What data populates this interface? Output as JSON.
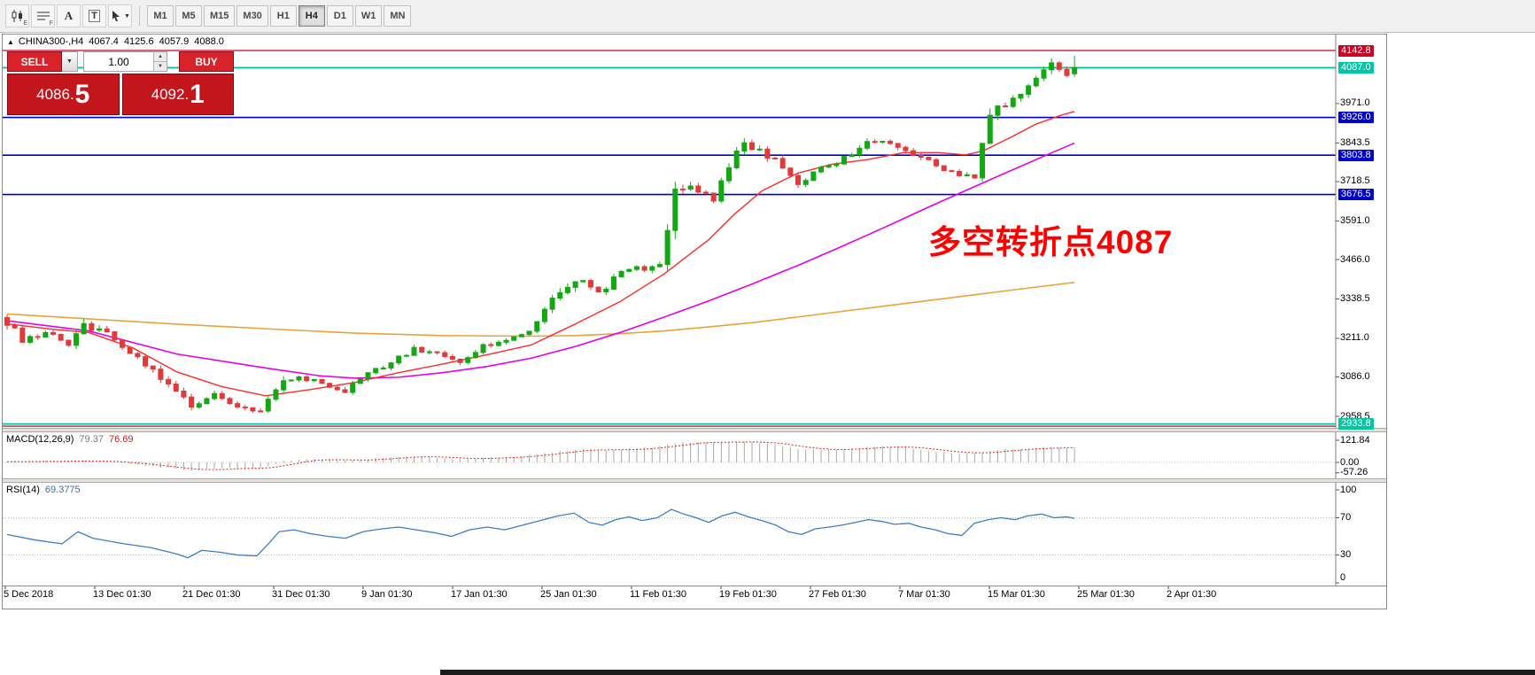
{
  "toolbar": {
    "icon_sub_e": "E",
    "icon_sub_f": "F",
    "icon_a": "A",
    "icon_t": "T",
    "timeframes": [
      "M1",
      "M5",
      "M15",
      "M30",
      "H1",
      "H4",
      "D1",
      "W1",
      "MN"
    ],
    "active_timeframe": "H4"
  },
  "icons": {
    "collapse": "▲",
    "dropdown": "▼",
    "step_up": "▲",
    "step_down": "▼",
    "cursor": "➤"
  },
  "chart": {
    "title_symbol": "CHINA300-,H4",
    "ohlc": {
      "open": "4067.4",
      "high": "4125.6",
      "low": "4057.9",
      "close": "4088.0"
    },
    "annotation": {
      "text": "多空转折点4087",
      "color": "#fe0000"
    }
  },
  "trade_panel": {
    "sell_label": "SELL",
    "buy_label": "BUY",
    "volume": "1.00",
    "sell_price_small": "4086.",
    "sell_price_big": "5",
    "buy_price_small": "4092.",
    "buy_price_big": "1"
  },
  "indicators": {
    "macd": {
      "name": "MACD(12,26,9)",
      "value_main": "79.37",
      "value_signal": "76.69"
    },
    "rsi": {
      "name": "RSI(14)",
      "value": "69.3775"
    }
  },
  "chart_data": {
    "type": "candlestick",
    "symbol": "CHINA300-",
    "timeframe": "H4",
    "bars": 140,
    "ylim": [
      2927,
      4160
    ],
    "last_candle": {
      "open": 4067.4,
      "high": 4125.6,
      "low": 4057.9,
      "close": 4088.0
    },
    "price_axis_plain": [
      3971.0,
      3843.5,
      3718.5,
      3591.0,
      3466.0,
      3338.5,
      3211.0,
      3086.0,
      2958.5
    ],
    "levels": [
      {
        "price": 4142.8,
        "color": "#cc0022",
        "badge": "red",
        "label": "4142.8"
      },
      {
        "price": 4087.0,
        "color": "#00c7a3",
        "badge": "teal",
        "label": "4087.0"
      },
      {
        "price": 3926.0,
        "color": "#0000cc",
        "badge": "blue",
        "label": "3926.0"
      },
      {
        "price": 3803.8,
        "color": "#0000cc",
        "badge": "blue",
        "label": "3803.8"
      },
      {
        "price": 3676.5,
        "color": "#0000cc",
        "badge": "blue",
        "label": "3676.5"
      },
      {
        "price": 2933.8,
        "color": "#00c7a3",
        "badge": "teal",
        "label": "2933.8"
      },
      {
        "price": 2926.5,
        "color": "#cc0022",
        "badge": null,
        "label": null
      }
    ],
    "time_labels": [
      "5 Dec 2018",
      "13 Dec 01:30",
      "21 Dec 01:30",
      "31 Dec 01:30",
      "9 Jan 01:30",
      "17 Jan 01:30",
      "25 Jan 01:30",
      "11 Feb 01:30",
      "19 Feb 01:30",
      "27 Feb 01:30",
      "7 Mar 01:30",
      "15 Mar 01:30",
      "25 Mar 01:30",
      "2 Apr 01:30"
    ],
    "colors": {
      "bull": "#13a813",
      "bear": "#e23a3a",
      "ma_fast": "#ff2a2a",
      "ma_mid": "#e800e8",
      "ma_slow": "#e8a33d",
      "rsi": "#3f7cc4",
      "macd_hist": "#a9a9a9",
      "macd_signal": "#dd2222"
    },
    "candles_waypoints": [
      [
        0,
        3265,
        45
      ],
      [
        2,
        3205,
        26
      ],
      [
        5,
        3228,
        18
      ],
      [
        8,
        3196,
        18
      ],
      [
        10,
        3252,
        30
      ],
      [
        13,
        3226,
        20
      ],
      [
        16,
        3162,
        20
      ],
      [
        19,
        3112,
        22
      ],
      [
        22,
        3032,
        26
      ],
      [
        24,
        2996,
        22
      ],
      [
        27,
        3030,
        18
      ],
      [
        30,
        2996,
        18
      ],
      [
        33,
        2976,
        18
      ],
      [
        35,
        3058,
        32
      ],
      [
        38,
        3092,
        20
      ],
      [
        41,
        3062,
        16
      ],
      [
        44,
        3042,
        16
      ],
      [
        47,
        3096,
        18
      ],
      [
        50,
        3136,
        18
      ],
      [
        53,
        3176,
        18
      ],
      [
        56,
        3160,
        15
      ],
      [
        59,
        3130,
        15
      ],
      [
        62,
        3190,
        18
      ],
      [
        65,
        3202,
        15
      ],
      [
        68,
        3242,
        22
      ],
      [
        71,
        3330,
        28
      ],
      [
        74,
        3406,
        28
      ],
      [
        77,
        3352,
        22
      ],
      [
        80,
        3430,
        26
      ],
      [
        83,
        3436,
        18
      ],
      [
        85,
        3452,
        20
      ],
      [
        87,
        3700,
        58
      ],
      [
        89,
        3702,
        26
      ],
      [
        92,
        3656,
        22
      ],
      [
        95,
        3830,
        42
      ],
      [
        97,
        3832,
        24
      ],
      [
        100,
        3790,
        22
      ],
      [
        103,
        3716,
        20
      ],
      [
        106,
        3760,
        20
      ],
      [
        109,
        3792,
        18
      ],
      [
        112,
        3846,
        22
      ],
      [
        114,
        3852,
        20
      ],
      [
        117,
        3822,
        18
      ],
      [
        120,
        3786,
        18
      ],
      [
        123,
        3746,
        18
      ],
      [
        126,
        3732,
        15
      ],
      [
        128,
        3936,
        42
      ],
      [
        130,
        3966,
        22
      ],
      [
        133,
        4020,
        26
      ],
      [
        136,
        4106,
        30
      ],
      [
        138,
        4068,
        24
      ],
      [
        139,
        4088,
        30
      ]
    ],
    "ma_fast_points": [
      [
        8,
        3258
      ],
      [
        60,
        3240
      ],
      [
        100,
        3230
      ],
      [
        150,
        3180
      ],
      [
        200,
        3102
      ],
      [
        250,
        3055
      ],
      [
        300,
        3025
      ],
      [
        350,
        3045
      ],
      [
        400,
        3068
      ],
      [
        450,
        3100
      ],
      [
        500,
        3128
      ],
      [
        550,
        3158
      ],
      [
        600,
        3190
      ],
      [
        650,
        3258
      ],
      [
        700,
        3330
      ],
      [
        750,
        3420
      ],
      [
        800,
        3530
      ],
      [
        830,
        3615
      ],
      [
        860,
        3688
      ],
      [
        900,
        3745
      ],
      [
        940,
        3775
      ],
      [
        980,
        3790
      ],
      [
        1020,
        3812
      ],
      [
        1060,
        3812
      ],
      [
        1090,
        3805
      ],
      [
        1110,
        3818
      ],
      [
        1140,
        3860
      ],
      [
        1170,
        3905
      ],
      [
        1200,
        3935
      ],
      [
        1213,
        3945
      ]
    ],
    "ma_mid_points": [
      [
        8,
        3268
      ],
      [
        100,
        3235
      ],
      [
        200,
        3160
      ],
      [
        300,
        3115
      ],
      [
        360,
        3090
      ],
      [
        400,
        3082
      ],
      [
        450,
        3085
      ],
      [
        500,
        3100
      ],
      [
        550,
        3120
      ],
      [
        600,
        3147
      ],
      [
        650,
        3185
      ],
      [
        700,
        3230
      ],
      [
        750,
        3280
      ],
      [
        800,
        3332
      ],
      [
        850,
        3388
      ],
      [
        900,
        3446
      ],
      [
        950,
        3508
      ],
      [
        1000,
        3572
      ],
      [
        1050,
        3638
      ],
      [
        1100,
        3702
      ],
      [
        1150,
        3765
      ],
      [
        1190,
        3815
      ],
      [
        1213,
        3843
      ]
    ],
    "ma_slow_points": [
      [
        8,
        3290
      ],
      [
        100,
        3274
      ],
      [
        200,
        3257
      ],
      [
        300,
        3242
      ],
      [
        400,
        3228
      ],
      [
        500,
        3220
      ],
      [
        600,
        3218
      ],
      [
        650,
        3220
      ],
      [
        700,
        3226
      ],
      [
        750,
        3235
      ],
      [
        800,
        3248
      ],
      [
        850,
        3262
      ],
      [
        900,
        3280
      ],
      [
        950,
        3298
      ],
      [
        1000,
        3316
      ],
      [
        1050,
        3334
      ],
      [
        1100,
        3352
      ],
      [
        1150,
        3370
      ],
      [
        1213,
        3392
      ]
    ],
    "macd": {
      "params": "12,26,9",
      "main": 79.37,
      "signal": 76.69,
      "axis": [
        121.84,
        0.0,
        -57.26
      ],
      "hist_waypoints": [
        [
          0,
          3
        ],
        [
          5,
          7
        ],
        [
          10,
          8
        ],
        [
          14,
          0
        ],
        [
          18,
          -20
        ],
        [
          22,
          -38
        ],
        [
          24,
          -45
        ],
        [
          28,
          -30
        ],
        [
          31,
          -34
        ],
        [
          34,
          -24
        ],
        [
          36,
          6
        ],
        [
          39,
          20
        ],
        [
          42,
          14
        ],
        [
          45,
          10
        ],
        [
          48,
          22
        ],
        [
          51,
          30
        ],
        [
          54,
          34
        ],
        [
          57,
          24
        ],
        [
          60,
          18
        ],
        [
          63,
          28
        ],
        [
          66,
          32
        ],
        [
          69,
          44
        ],
        [
          72,
          62
        ],
        [
          75,
          74
        ],
        [
          78,
          64
        ],
        [
          81,
          76
        ],
        [
          84,
          82
        ],
        [
          87,
          106
        ],
        [
          90,
          112
        ],
        [
          93,
          108
        ],
        [
          95,
          118
        ],
        [
          97,
          114
        ],
        [
          100,
          96
        ],
        [
          103,
          76
        ],
        [
          106,
          68
        ],
        [
          109,
          72
        ],
        [
          112,
          86
        ],
        [
          115,
          88
        ],
        [
          118,
          74
        ],
        [
          121,
          60
        ],
        [
          124,
          48
        ],
        [
          127,
          55
        ],
        [
          130,
          72
        ],
        [
          133,
          75
        ],
        [
          136,
          82
        ],
        [
          139,
          79.4
        ]
      ]
    },
    "rsi": {
      "period": 14,
      "value": 69.3775,
      "axis": [
        100,
        70,
        30,
        0
      ],
      "points": [
        [
          8,
          52
        ],
        [
          40,
          46
        ],
        [
          70,
          42
        ],
        [
          88,
          55
        ],
        [
          105,
          48
        ],
        [
          140,
          42
        ],
        [
          170,
          38
        ],
        [
          200,
          31
        ],
        [
          212,
          27
        ],
        [
          228,
          35
        ],
        [
          248,
          33
        ],
        [
          268,
          30
        ],
        [
          290,
          29
        ],
        [
          305,
          44
        ],
        [
          315,
          55
        ],
        [
          332,
          57
        ],
        [
          350,
          53
        ],
        [
          370,
          50
        ],
        [
          390,
          48
        ],
        [
          410,
          55
        ],
        [
          430,
          58
        ],
        [
          450,
          60
        ],
        [
          470,
          57
        ],
        [
          490,
          54
        ],
        [
          510,
          50
        ],
        [
          530,
          57
        ],
        [
          550,
          60
        ],
        [
          570,
          57
        ],
        [
          590,
          62
        ],
        [
          610,
          67
        ],
        [
          630,
          72
        ],
        [
          648,
          75
        ],
        [
          665,
          65
        ],
        [
          680,
          62
        ],
        [
          695,
          68
        ],
        [
          710,
          71
        ],
        [
          725,
          67
        ],
        [
          742,
          70
        ],
        [
          758,
          79
        ],
        [
          772,
          74
        ],
        [
          786,
          70
        ],
        [
          800,
          65
        ],
        [
          815,
          72
        ],
        [
          830,
          76
        ],
        [
          845,
          71
        ],
        [
          860,
          67
        ],
        [
          876,
          62
        ],
        [
          890,
          55
        ],
        [
          905,
          52
        ],
        [
          920,
          58
        ],
        [
          936,
          60
        ],
        [
          950,
          62
        ],
        [
          966,
          65
        ],
        [
          980,
          68
        ],
        [
          996,
          66
        ],
        [
          1010,
          63
        ],
        [
          1026,
          64
        ],
        [
          1040,
          60
        ],
        [
          1056,
          57
        ],
        [
          1070,
          53
        ],
        [
          1086,
          51
        ],
        [
          1100,
          64
        ],
        [
          1116,
          68
        ],
        [
          1130,
          70
        ],
        [
          1146,
          68
        ],
        [
          1160,
          72
        ],
        [
          1176,
          74
        ],
        [
          1190,
          70
        ],
        [
          1204,
          71
        ],
        [
          1213,
          69.4
        ]
      ]
    }
  }
}
